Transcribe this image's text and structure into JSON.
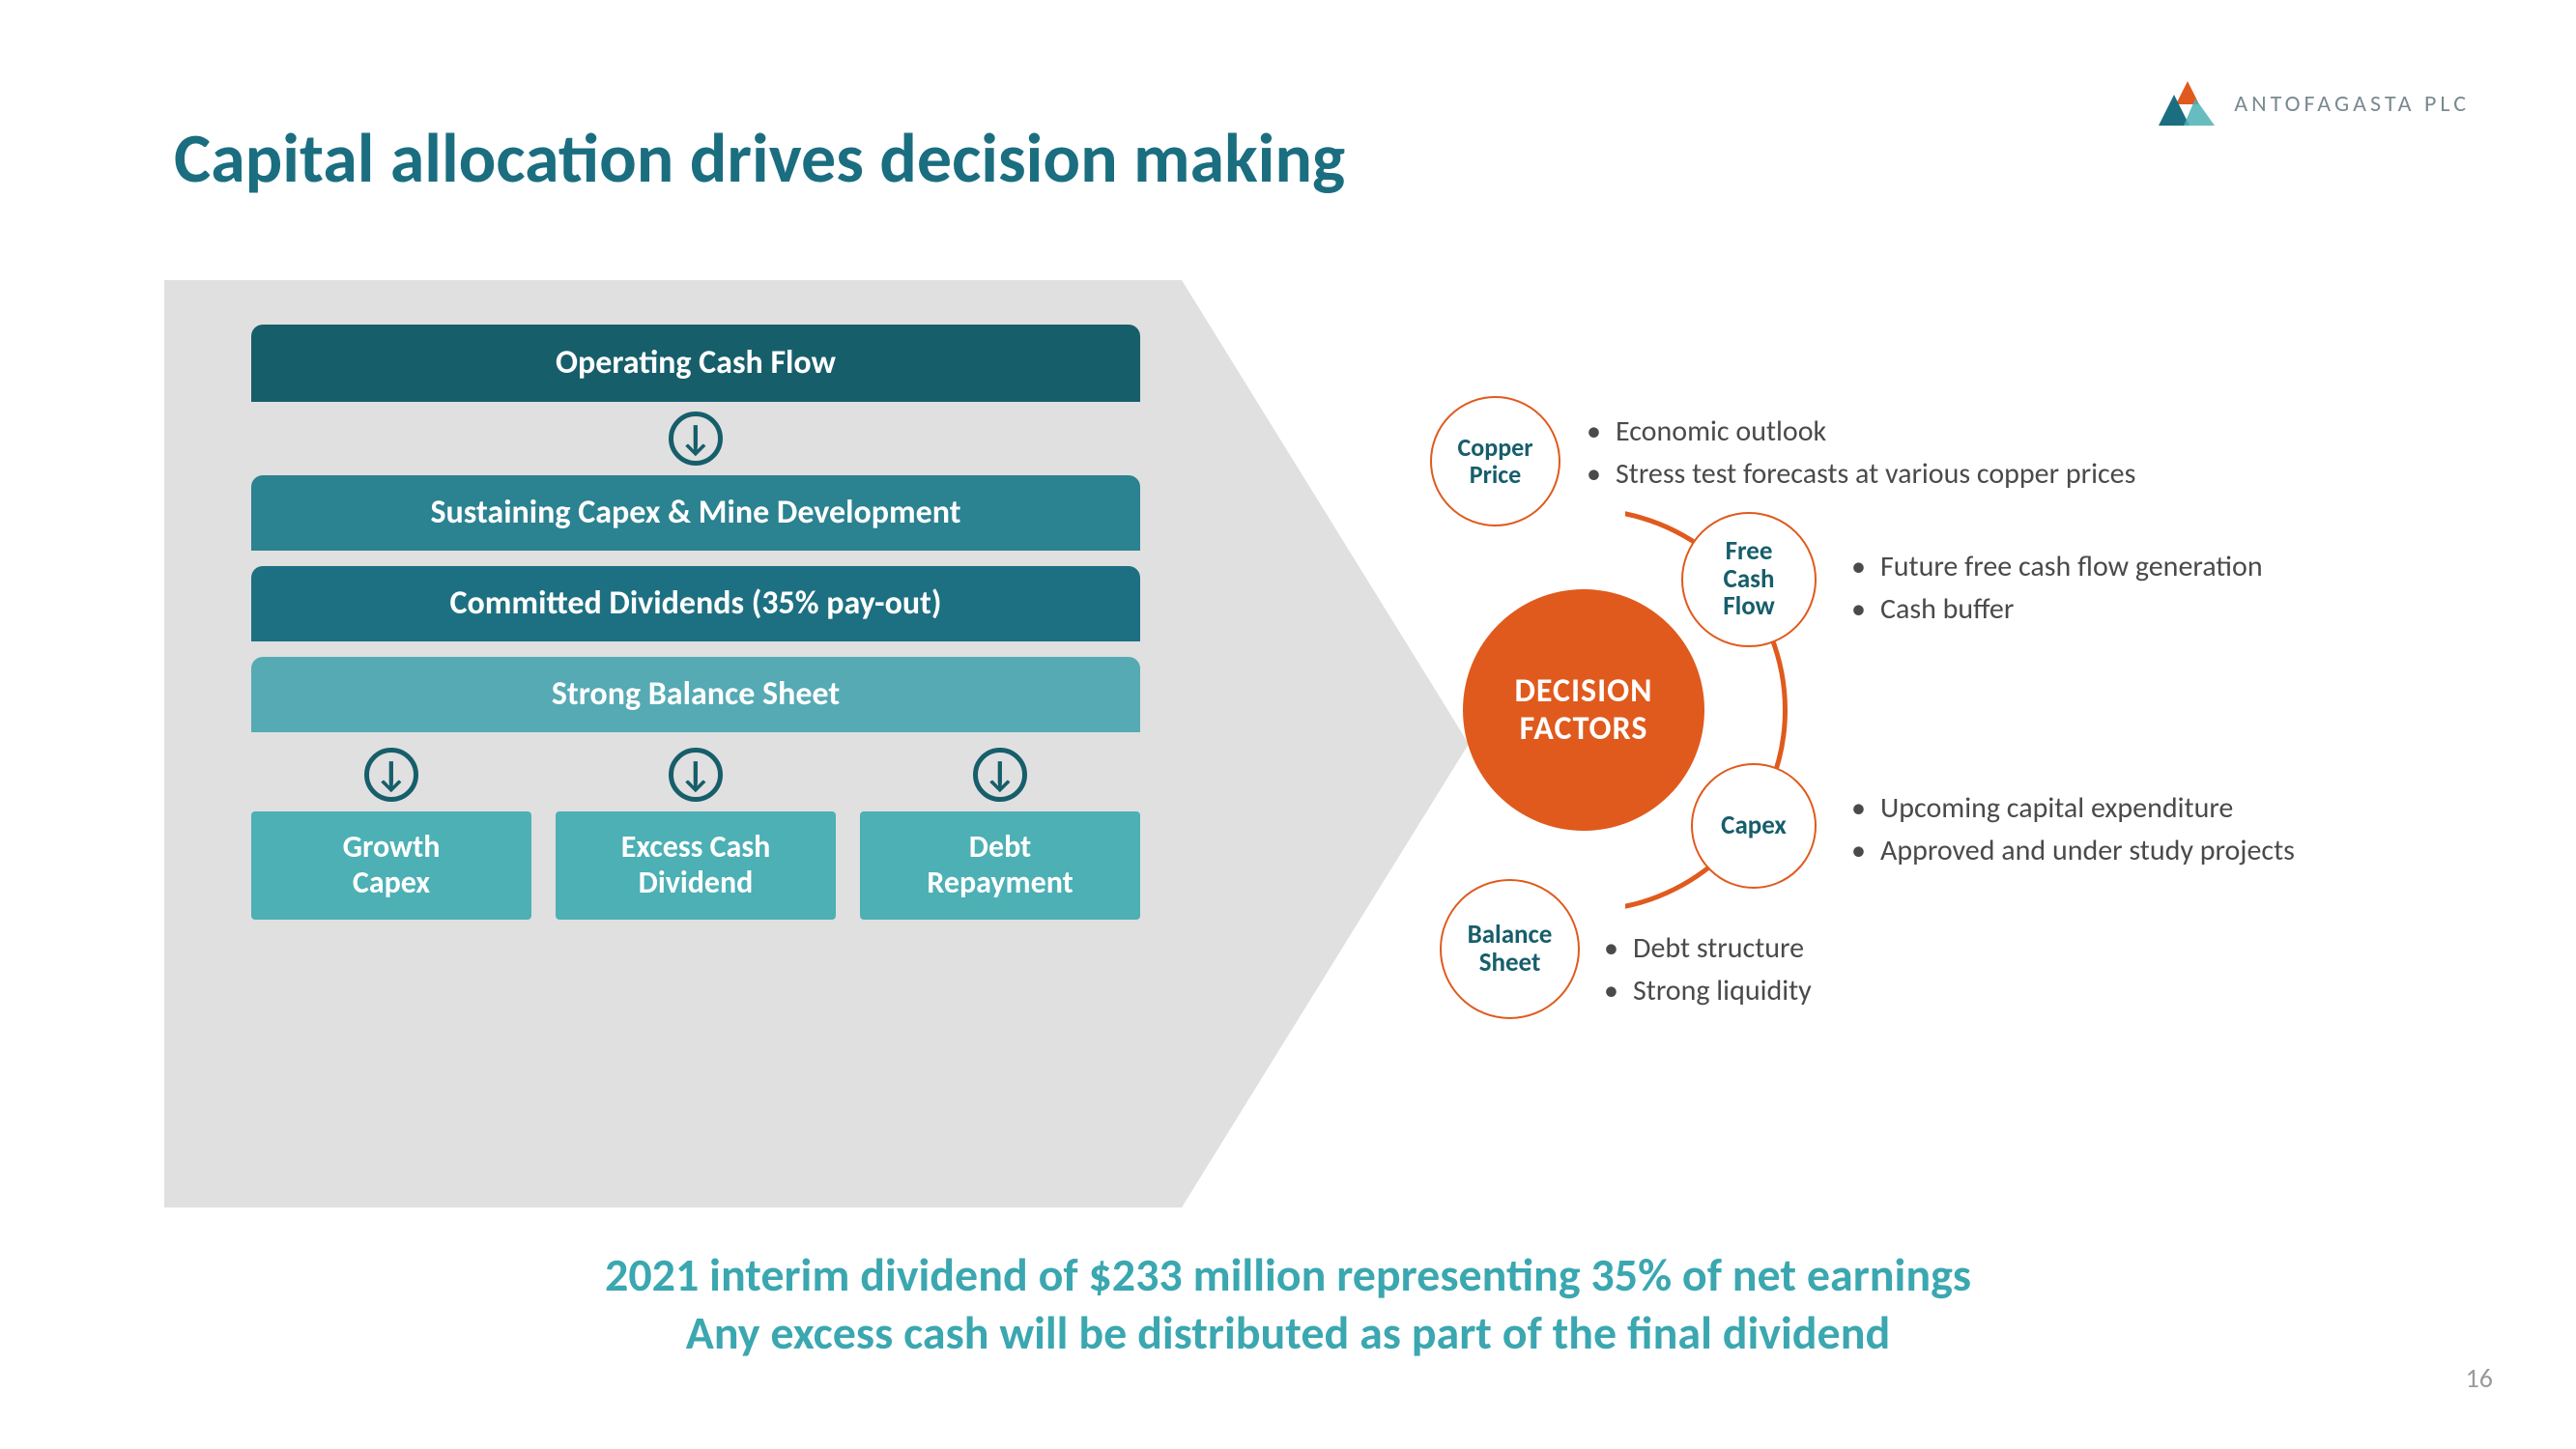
{
  "colors": {
    "title": "#1a6e80",
    "bar_dark": "#175e6b",
    "bar_mid": "#2b8291",
    "bar_mid2": "#1d7081",
    "bar_light": "#55aab4",
    "triple": "#4cb0b5",
    "hub": "#e05a1d",
    "text": "#4a4a4a",
    "footer": "#3ba7b0",
    "grey": "#e0e0e0",
    "logo_text": "#7a8a90"
  },
  "title": "Capital allocation drives decision making",
  "logo": {
    "text": "ANTOFAGASTA PLC"
  },
  "flow": {
    "bars": [
      {
        "label": "Operating Cash Flow",
        "cls": "ocf"
      },
      {
        "label": "Sustaining Capex & Mine Development",
        "cls": "sust"
      },
      {
        "label": "Committed Dividends (35% pay-out)",
        "cls": "div"
      },
      {
        "label": "Strong Balance Sheet",
        "cls": "bal"
      }
    ],
    "outputs": [
      {
        "label": "Growth\nCapex"
      },
      {
        "label": "Excess Cash\nDividend"
      },
      {
        "label": "Debt\nRepayment"
      }
    ]
  },
  "hub": {
    "line1": "DECISION",
    "line2": "FACTORS"
  },
  "satellites": {
    "copper": {
      "l1": "Copper",
      "l2": "Price"
    },
    "fcf": {
      "l1": "Free",
      "l2": "Cash",
      "l3": "Flow"
    },
    "capex": {
      "l1": "Capex"
    },
    "bs": {
      "l1": "Balance",
      "l2": "Sheet"
    }
  },
  "bullets": {
    "copper": [
      "Economic outlook",
      "Stress test forecasts at various copper prices"
    ],
    "fcf": [
      "Future free cash flow generation",
      "Cash buffer"
    ],
    "capex": [
      "Upcoming capital expenditure",
      "Approved and under study projects"
    ],
    "bs": [
      "Debt structure",
      "Strong liquidity"
    ]
  },
  "footer": {
    "line1": "2021 interim dividend of $233 million representing 35% of net earnings",
    "line2": "Any excess cash will be distributed as part of the final dividend"
  },
  "page": "16"
}
